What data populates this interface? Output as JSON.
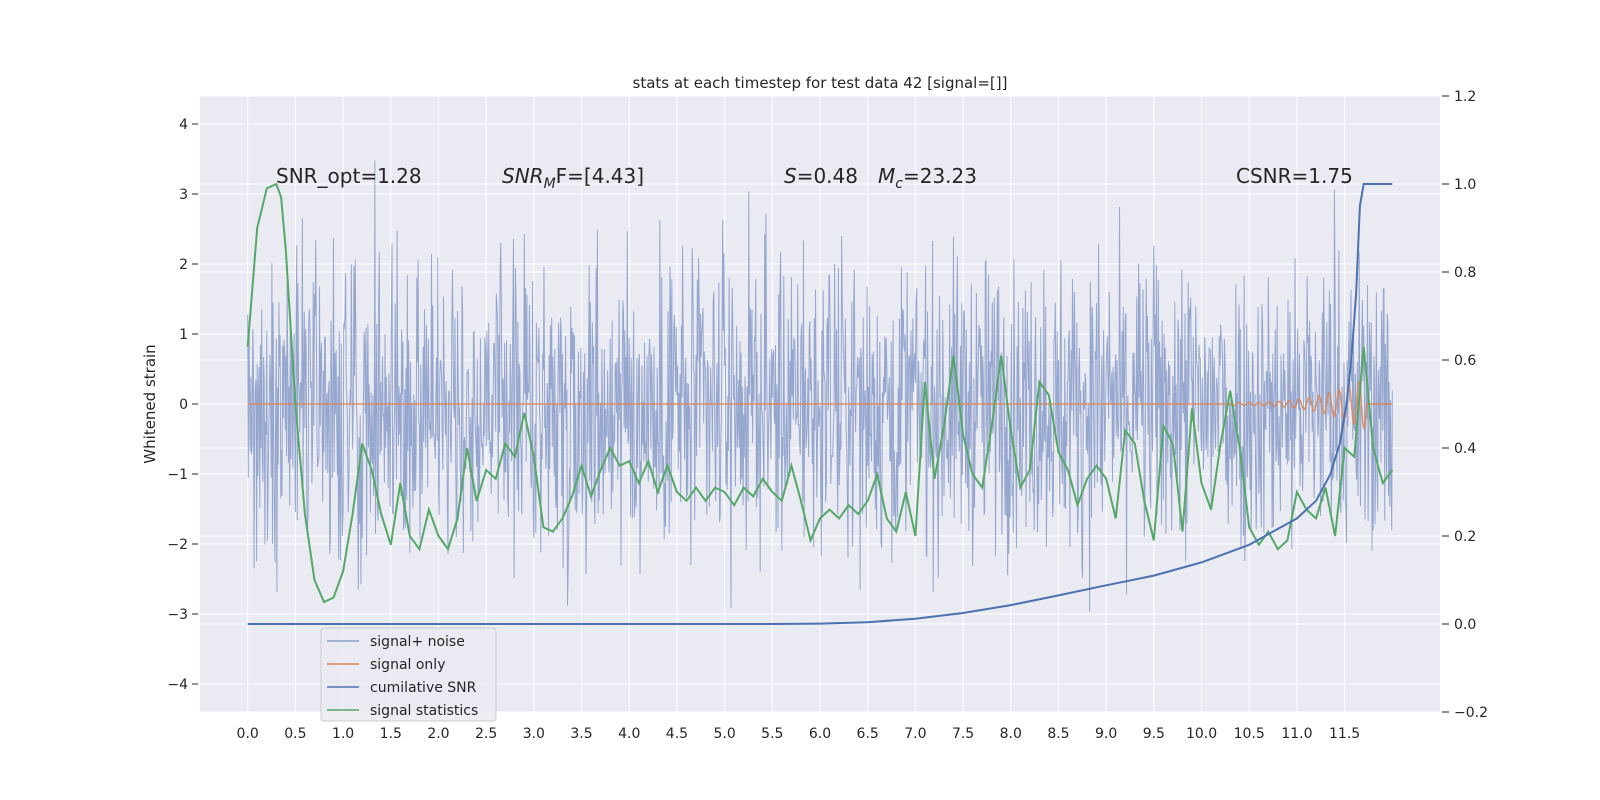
{
  "chart_data": {
    "type": "line",
    "title": "stats at each timestep for test data 42 [signal=[]]",
    "ylabel": "Whitened strain",
    "xlabel": "",
    "xlim": [
      -0.5,
      12.5
    ],
    "ylim": [
      -4.4,
      4.4
    ],
    "y2lim": [
      -0.2,
      1.2
    ],
    "x_ticks": [
      "0.0",
      "0.5",
      "1.0",
      "1.5",
      "2.0",
      "2.5",
      "3.0",
      "3.5",
      "4.0",
      "4.5",
      "5.0",
      "5.5",
      "6.0",
      "6.5",
      "7.0",
      "7.5",
      "8.0",
      "8.5",
      "9.0",
      "9.5",
      "10.0",
      "10.5",
      "11.0",
      "11.5"
    ],
    "y_ticks": [
      "4",
      "3",
      "2",
      "1",
      "0",
      "−1",
      "−2",
      "−3",
      "−4"
    ],
    "y2_ticks": [
      "1.2",
      "1.0",
      "0.8",
      "0.6",
      "0.4",
      "0.2",
      "0.0",
      "−0.2"
    ],
    "grid": true,
    "legend_position": "lower-left",
    "annotations": {
      "snr_opt": "SNR_opt=1.28",
      "snr_mf_base": "SNR",
      "snr_mf_sub": "M",
      "snr_mf_rest": "F=[4.43]",
      "s_var": "S",
      "s_val": "=0.48",
      "mc_var": "M",
      "mc_sub": "c",
      "mc_val": "=23.23",
      "csnr": "CSNR=1.75"
    },
    "series": [
      {
        "name": "signal+ noise",
        "color": "#8da0cb",
        "axis": "left",
        "description": "noise-dominated whitened strain, approx. ±2.5 with spikes to ±4",
        "x_range": [
          0,
          12.0
        ]
      },
      {
        "name": "signal only",
        "color": "#dd8452",
        "axis": "left",
        "description": "near zero, chirp grows near merger",
        "x_range": [
          0,
          12.0
        ]
      },
      {
        "name": "cumilative SNR",
        "color": "#4c72b0",
        "axis": "right",
        "x": [
          0,
          5.5,
          6.0,
          6.5,
          7.0,
          7.5,
          8.0,
          8.5,
          9.0,
          9.5,
          10.0,
          10.5,
          11.0,
          11.2,
          11.35,
          11.45,
          11.52,
          11.57,
          11.62,
          11.66,
          11.7,
          12.0
        ],
        "values": [
          0,
          0,
          0.001,
          0.004,
          0.012,
          0.025,
          0.043,
          0.065,
          0.088,
          0.11,
          0.14,
          0.18,
          0.24,
          0.28,
          0.34,
          0.41,
          0.5,
          0.6,
          0.75,
          0.95,
          1.0,
          1.0
        ]
      },
      {
        "name": "signal statistics",
        "color": "#55a868",
        "axis": "right",
        "x": [
          0,
          0.1,
          0.2,
          0.3,
          0.35,
          0.4,
          0.5,
          0.6,
          0.7,
          0.8,
          0.9,
          1.0,
          1.1,
          1.2,
          1.3,
          1.4,
          1.5,
          1.6,
          1.7,
          1.8,
          1.9,
          2.0,
          2.1,
          2.2,
          2.3,
          2.4,
          2.5,
          2.6,
          2.7,
          2.8,
          2.9,
          3.0,
          3.1,
          3.2,
          3.3,
          3.4,
          3.5,
          3.6,
          3.7,
          3.8,
          3.9,
          4.0,
          4.1,
          4.2,
          4.3,
          4.4,
          4.5,
          4.6,
          4.7,
          4.8,
          4.9,
          5.0,
          5.1,
          5.2,
          5.3,
          5.4,
          5.5,
          5.6,
          5.7,
          5.8,
          5.9,
          6.0,
          6.1,
          6.2,
          6.3,
          6.4,
          6.5,
          6.6,
          6.7,
          6.8,
          6.9,
          7.0,
          7.1,
          7.2,
          7.3,
          7.4,
          7.5,
          7.6,
          7.7,
          7.8,
          7.9,
          8.0,
          8.1,
          8.2,
          8.3,
          8.4,
          8.5,
          8.6,
          8.7,
          8.8,
          8.9,
          9.0,
          9.1,
          9.2,
          9.3,
          9.4,
          9.5,
          9.6,
          9.7,
          9.8,
          9.9,
          10.0,
          10.1,
          10.2,
          10.3,
          10.4,
          10.5,
          10.6,
          10.7,
          10.8,
          10.9,
          11.0,
          11.1,
          11.2,
          11.3,
          11.4,
          11.5,
          11.6,
          11.7,
          11.8,
          11.9,
          12.0
        ],
        "values": [
          0.63,
          0.9,
          0.99,
          1.0,
          0.97,
          0.85,
          0.5,
          0.25,
          0.1,
          0.05,
          0.06,
          0.12,
          0.25,
          0.41,
          0.35,
          0.25,
          0.18,
          0.32,
          0.2,
          0.17,
          0.26,
          0.2,
          0.17,
          0.24,
          0.4,
          0.28,
          0.35,
          0.33,
          0.41,
          0.38,
          0.48,
          0.38,
          0.22,
          0.21,
          0.24,
          0.29,
          0.36,
          0.29,
          0.35,
          0.4,
          0.36,
          0.37,
          0.32,
          0.37,
          0.3,
          0.36,
          0.3,
          0.28,
          0.31,
          0.28,
          0.31,
          0.3,
          0.27,
          0.31,
          0.29,
          0.33,
          0.3,
          0.28,
          0.36,
          0.28,
          0.19,
          0.24,
          0.26,
          0.24,
          0.27,
          0.25,
          0.28,
          0.34,
          0.24,
          0.21,
          0.3,
          0.2,
          0.55,
          0.33,
          0.45,
          0.61,
          0.43,
          0.34,
          0.31,
          0.45,
          0.61,
          0.44,
          0.31,
          0.35,
          0.55,
          0.52,
          0.39,
          0.35,
          0.27,
          0.33,
          0.36,
          0.33,
          0.24,
          0.44,
          0.41,
          0.28,
          0.19,
          0.45,
          0.41,
          0.21,
          0.49,
          0.32,
          0.26,
          0.41,
          0.53,
          0.4,
          0.22,
          0.18,
          0.21,
          0.17,
          0.19,
          0.3,
          0.26,
          0.24,
          0.31,
          0.2,
          0.4,
          0.38,
          0.63,
          0.4,
          0.32,
          0.35
        ]
      }
    ]
  }
}
